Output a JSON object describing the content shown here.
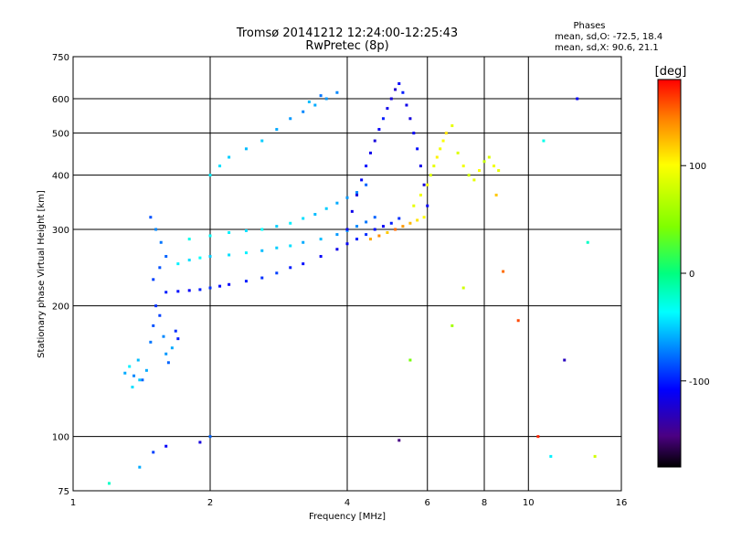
{
  "header": {
    "title_line1": "Tromsø 20141212 12:24:00-12:25:43",
    "title_line2": "RwPretec (8p)"
  },
  "phases_box": {
    "heading": "Phases",
    "line_o": "mean, sd,O: -72.5, 18.4",
    "line_x": "mean, sd,X:  90.6, 21.1"
  },
  "colorbar": {
    "unit_label": "[deg]",
    "ticks": [
      "100",
      "0",
      "-100"
    ],
    "tick_values": [
      100,
      0,
      -100
    ],
    "range": [
      -180,
      180
    ]
  },
  "chart_data": {
    "type": "scatter",
    "title": "Tromsø 20141212 12:24:00-12:25:43",
    "subtitle": "RwPretec (8p)",
    "xlabel": "Frequency [MHz]",
    "ylabel": "Stationary phase Virtual Height [km]",
    "x_scale": "log",
    "y_scale": "log",
    "xlim": [
      1,
      16
    ],
    "ylim": [
      75,
      750
    ],
    "x_ticks": [
      1,
      2,
      4,
      6,
      8,
      10,
      16
    ],
    "x_tick_labels": [
      "1",
      "2",
      "4",
      "6",
      "8",
      "10",
      "16"
    ],
    "y_ticks": [
      75,
      100,
      200,
      300,
      400,
      500,
      600,
      750
    ],
    "y_tick_labels": [
      "75",
      "100",
      "200",
      "300",
      "400",
      "500",
      "600",
      "750"
    ],
    "grid": true,
    "color_quantity": "phase [deg]",
    "color_range": [
      -180,
      180
    ],
    "series": [
      {
        "x": [
          1.3,
          1.33,
          1.36,
          1.39,
          1.42,
          1.45,
          1.48,
          1.5,
          1.52,
          1.55,
          1.58,
          1.6,
          1.62,
          1.65,
          1.68,
          1.7,
          1.5,
          1.55,
          1.6,
          1.56,
          1.52,
          1.48,
          1.4,
          1.35
        ],
        "y": [
          140,
          145,
          138,
          150,
          135,
          142,
          165,
          180,
          200,
          190,
          170,
          155,
          148,
          160,
          175,
          168,
          230,
          245,
          260,
          280,
          300,
          320,
          135,
          130
        ],
        "phase": [
          -60,
          -40,
          -70,
          -55,
          -80,
          -60,
          -75,
          -85,
          -95,
          -90,
          -70,
          -65,
          -80,
          -60,
          -95,
          -100,
          -90,
          -85,
          -80,
          -75,
          -70,
          -85,
          -50,
          -45
        ]
      },
      {
        "x": [
          1.6,
          1.7,
          1.8,
          1.9,
          2.0,
          2.1,
          2.2,
          2.4,
          2.6,
          2.8,
          3.0,
          3.2,
          3.5,
          3.8,
          4.0,
          4.2,
          4.4,
          4.6,
          4.8,
          5.0,
          5.2
        ],
        "y": [
          215,
          216,
          217,
          218,
          220,
          222,
          224,
          228,
          232,
          238,
          245,
          250,
          260,
          270,
          278,
          285,
          292,
          300,
          305,
          310,
          318
        ],
        "phase": [
          -100,
          -105,
          -110,
          -100,
          -95,
          -105,
          -110,
          -100,
          -95,
          -90,
          -100,
          -105,
          -110,
          -115,
          -110,
          -100,
          -95,
          -105,
          -110,
          -100,
          -95
        ]
      },
      {
        "x": [
          1.7,
          1.8,
          1.9,
          2.0,
          2.2,
          2.4,
          2.6,
          2.8,
          3.0,
          3.2,
          3.5,
          3.8,
          4.0,
          4.2,
          4.4,
          4.6
        ],
        "y": [
          250,
          255,
          258,
          260,
          262,
          265,
          268,
          272,
          275,
          280,
          285,
          292,
          298,
          305,
          312,
          320
        ],
        "phase": [
          -40,
          -45,
          -35,
          -50,
          -45,
          -40,
          -55,
          -50,
          -45,
          -60,
          -55,
          -65,
          -60,
          -70,
          -75,
          -80
        ]
      },
      {
        "x": [
          1.8,
          2.0,
          2.2,
          2.4,
          2.6,
          2.8,
          3.0,
          3.2,
          3.4,
          3.6,
          3.8,
          4.0,
          4.2,
          4.4
        ],
        "y": [
          285,
          290,
          295,
          298,
          300,
          305,
          310,
          318,
          325,
          335,
          345,
          355,
          365,
          380
        ],
        "phase": [
          -30,
          -35,
          -40,
          -45,
          -35,
          -50,
          -40,
          -45,
          -55,
          -50,
          -60,
          -65,
          -70,
          -80
        ]
      },
      {
        "x": [
          2.0,
          2.1,
          2.2,
          2.4,
          2.6,
          2.8,
          3.0,
          3.2,
          3.4,
          3.6,
          3.8,
          3.5,
          3.3
        ],
        "y": [
          400,
          420,
          440,
          460,
          480,
          510,
          540,
          560,
          580,
          600,
          620,
          610,
          590
        ],
        "phase": [
          -40,
          -45,
          -50,
          -55,
          -50,
          -60,
          -65,
          -70,
          -60,
          -65,
          -70,
          -75,
          -55
        ]
      },
      {
        "x": [
          4.0,
          4.1,
          4.2,
          4.3,
          4.4,
          4.5,
          4.6,
          4.7,
          4.8,
          4.9,
          5.0,
          5.1,
          5.2,
          5.3,
          5.4,
          5.5,
          5.6,
          5.7,
          5.8,
          5.9,
          6.0
        ],
        "y": [
          300,
          330,
          360,
          390,
          420,
          450,
          480,
          510,
          540,
          570,
          600,
          630,
          650,
          620,
          580,
          540,
          500,
          460,
          420,
          380,
          340
        ],
        "phase": [
          -110,
          -115,
          -120,
          -110,
          -105,
          -115,
          -120,
          -110,
          -100,
          -115,
          -120,
          -125,
          -110,
          -100,
          -115,
          -120,
          -110,
          -105,
          -115,
          -120,
          -110
        ]
      },
      {
        "x": [
          5.6,
          5.8,
          6.0,
          6.1,
          6.2,
          6.3,
          6.4,
          6.5,
          6.6,
          6.8,
          7.0,
          7.2,
          7.4,
          7.6,
          7.8,
          8.0,
          8.2,
          8.4,
          8.6
        ],
        "y": [
          340,
          360,
          380,
          400,
          420,
          440,
          460,
          480,
          500,
          520,
          450,
          420,
          400,
          390,
          410,
          430,
          440,
          420,
          410
        ],
        "phase": [
          90,
          95,
          100,
          85,
          90,
          105,
          95,
          100,
          110,
          90,
          85,
          95,
          80,
          90,
          100,
          75,
          85,
          95,
          90
        ]
      },
      {
        "x": [
          4.5,
          4.7,
          4.9,
          5.1,
          5.3,
          5.5,
          5.7,
          5.9
        ],
        "y": [
          285,
          290,
          295,
          300,
          305,
          310,
          315,
          320
        ],
        "phase": [
          130,
          140,
          120,
          150,
          135,
          125,
          110,
          100
        ]
      },
      {
        "x": [
          1.2,
          1.4,
          1.5,
          1.6,
          1.9,
          2.0,
          5.2,
          5.5,
          6.8,
          7.2,
          8.8,
          9.5,
          10.5,
          11.2,
          12.0,
          13.5,
          14.0,
          12.8,
          10.8,
          8.5
        ],
        "y": [
          78,
          85,
          92,
          95,
          97,
          100,
          98,
          150,
          180,
          220,
          240,
          185,
          100,
          90,
          150,
          280,
          90,
          600,
          480,
          360
        ],
        "phase": [
          -20,
          -60,
          -90,
          -110,
          -120,
          -80,
          -150,
          40,
          60,
          80,
          150,
          160,
          170,
          -40,
          -130,
          -20,
          80,
          -110,
          -30,
          120
        ]
      }
    ]
  }
}
